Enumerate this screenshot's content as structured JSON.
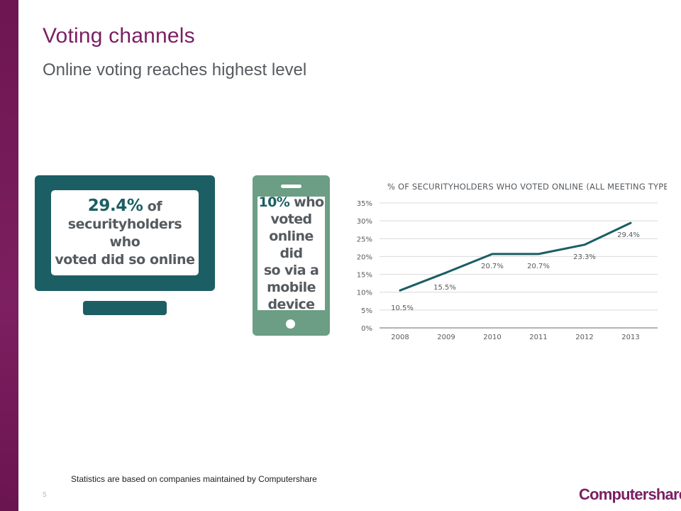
{
  "slide": {
    "title": "Voting channels",
    "subtitle": "Online voting reaches highest level",
    "footnote": "Statistics are based on companies maintained by Computershare",
    "page_number": "5",
    "logo_text": "Computershare"
  },
  "monitor_callout": {
    "highlight": "29.4%",
    "line1_rest": " of",
    "line2": "securityholders who",
    "line3": "voted did so online"
  },
  "phone_callout": {
    "highlight": "10%",
    "line1_rest": " who",
    "line2": "voted",
    "line3": "online did",
    "line4": "so via a",
    "line5": "mobile",
    "line6": "device"
  },
  "colors": {
    "brand_purple": "#7a1f63",
    "teal": "#1b5e64",
    "phone_green": "#6b9e84",
    "line": "#1b5e64",
    "grid": "#d9d9d9"
  },
  "chart_data": {
    "type": "line",
    "title": "% OF SECURITYHOLDERS WHO VOTED ONLINE (ALL MEETING TYPES)",
    "categories": [
      "2008",
      "2009",
      "2010",
      "2011",
      "2012",
      "2013"
    ],
    "values": [
      10.5,
      15.5,
      20.7,
      20.7,
      23.3,
      29.4
    ],
    "data_labels": [
      "10.5%",
      "15.5%",
      "20.7%",
      "20.7%",
      "23.3%",
      "29.4%"
    ],
    "y_ticks": [
      "35%",
      "30%",
      "25%",
      "20%",
      "15%",
      "10%",
      "5%",
      "0%"
    ],
    "y_tick_values": [
      35,
      30,
      25,
      20,
      15,
      10,
      5,
      0
    ],
    "ylim": [
      0,
      35
    ],
    "grid": true,
    "legend": "none"
  }
}
